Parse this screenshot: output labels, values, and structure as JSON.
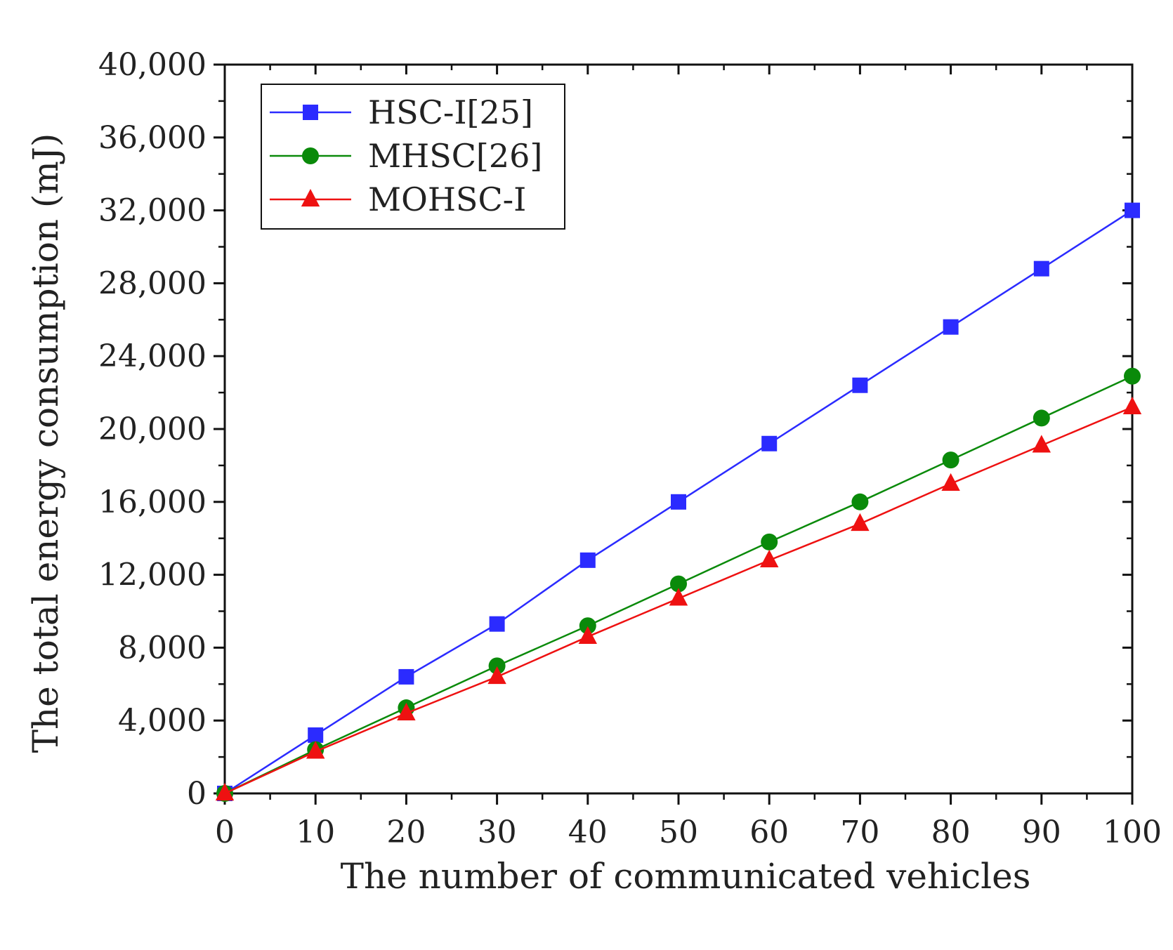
{
  "chart_data": {
    "type": "line",
    "title": "",
    "xlabel": "The number of communicated vehicles",
    "ylabel": "The total energy consumption (mJ)",
    "xlim": [
      0,
      100
    ],
    "ylim": [
      0,
      40000
    ],
    "x": [
      0,
      10,
      20,
      30,
      40,
      50,
      60,
      70,
      80,
      90,
      100
    ],
    "x_tick_labels": [
      "0",
      "10",
      "20",
      "30",
      "40",
      "50",
      "60",
      "70",
      "80",
      "90",
      "100"
    ],
    "y_ticks": [
      0,
      4000,
      8000,
      12000,
      16000,
      20000,
      24000,
      28000,
      32000,
      36000,
      40000
    ],
    "y_tick_labels": [
      "0",
      "4,000",
      "8,000",
      "12,000",
      "16,000",
      "20,000",
      "24,000",
      "28,000",
      "32,000",
      "36,000",
      "40,000"
    ],
    "grid": false,
    "legend_position": "top-left",
    "series": [
      {
        "name": "HSC-I[25]",
        "color": "#2b2bff",
        "marker": "square",
        "values": [
          0,
          3200,
          6400,
          9300,
          12800,
          16000,
          19200,
          22400,
          25600,
          28800,
          32000
        ]
      },
      {
        "name": "MHSC[26]",
        "color": "#0a8a0a",
        "marker": "circle",
        "values": [
          0,
          2400,
          4700,
          7000,
          9200,
          11500,
          13800,
          16000,
          18300,
          20600,
          22900
        ]
      },
      {
        "name": "MOHSC-I",
        "color": "#ee1111",
        "marker": "triangle",
        "values": [
          0,
          2300,
          4400,
          6400,
          8600,
          10700,
          12800,
          14800,
          17000,
          19100,
          21200
        ]
      }
    ]
  }
}
